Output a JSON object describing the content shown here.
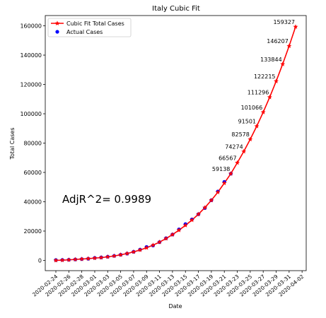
{
  "chart_data": {
    "type": "line",
    "title": "Italy Cubic Fit",
    "xlabel": "Date",
    "ylabel": "Total Cases",
    "ylim": [
      -7000,
      167000
    ],
    "yticks": [
      0,
      20000,
      40000,
      60000,
      80000,
      100000,
      120000,
      140000,
      160000
    ],
    "xtick_labels": [
      "2020-02-24",
      "2020-02-26",
      "2020-02-28",
      "2020-03-01",
      "2020-03-03",
      "2020-03-05",
      "2020-03-07",
      "2020-03-09",
      "2020-03-11",
      "2020-03-13",
      "2020-03-15",
      "2020-03-17",
      "2020-03-19",
      "2020-03-21",
      "2020-03-23",
      "2020-03-25",
      "2020-03-27",
      "2020-03-29",
      "2020-03-31",
      "2020-04-02"
    ],
    "x_start": "2020-02-24",
    "x_end": "2020-04-01",
    "legend_position": "top-left",
    "annotation": "AdjR^2= 0.9989",
    "series": [
      {
        "name": "Cubic Fit Total Cases",
        "color": "#ff0000",
        "marker": "star",
        "x": [
          "2020-02-24",
          "2020-02-25",
          "2020-02-26",
          "2020-02-27",
          "2020-02-28",
          "2020-02-29",
          "2020-03-01",
          "2020-03-02",
          "2020-03-03",
          "2020-03-04",
          "2020-03-05",
          "2020-03-06",
          "2020-03-07",
          "2020-03-08",
          "2020-03-09",
          "2020-03-10",
          "2020-03-11",
          "2020-03-12",
          "2020-03-13",
          "2020-03-14",
          "2020-03-15",
          "2020-03-16",
          "2020-03-17",
          "2020-03-18",
          "2020-03-19",
          "2020-03-20",
          "2020-03-21",
          "2020-03-22",
          "2020-03-23",
          "2020-03-24",
          "2020-03-25",
          "2020-03-26",
          "2020-03-27",
          "2020-03-28",
          "2020-03-29",
          "2020-03-30",
          "2020-03-31",
          "2020-04-01"
        ],
        "values": [
          0,
          150,
          350,
          650,
          900,
          1200,
          1550,
          1900,
          2400,
          3000,
          3800,
          4700,
          5800,
          7100,
          8600,
          10400,
          12500,
          14900,
          17600,
          20600,
          23900,
          27500,
          31500,
          36000,
          41000,
          46500,
          52700,
          59138,
          66567,
          74274,
          82578,
          91501,
          101066,
          111296,
          122215,
          133844,
          146207,
          159327
        ]
      },
      {
        "name": "Actual Cases",
        "color": "#0000ff",
        "marker": "circle",
        "x": [
          "2020-02-24",
          "2020-02-25",
          "2020-02-26",
          "2020-02-27",
          "2020-02-28",
          "2020-02-29",
          "2020-03-01",
          "2020-03-02",
          "2020-03-03",
          "2020-03-04",
          "2020-03-05",
          "2020-03-06",
          "2020-03-07",
          "2020-03-08",
          "2020-03-09",
          "2020-03-10",
          "2020-03-11",
          "2020-03-12",
          "2020-03-13",
          "2020-03-14",
          "2020-03-15",
          "2020-03-16",
          "2020-03-17",
          "2020-03-18",
          "2020-03-19",
          "2020-03-20",
          "2020-03-21",
          "2020-03-22"
        ],
        "values": [
          229,
          322,
          400,
          650,
          888,
          1128,
          1694,
          2036,
          2502,
          3089,
          3858,
          4636,
          5883,
          7375,
          9172,
          10149,
          12462,
          15113,
          17660,
          21157,
          24747,
          27980,
          31506,
          35713,
          41035,
          47021,
          53578,
          59138
        ]
      }
    ],
    "data_labels": {
      "x": [
        "2020-03-22",
        "2020-03-23",
        "2020-03-24",
        "2020-03-25",
        "2020-03-26",
        "2020-03-27",
        "2020-03-28",
        "2020-03-29",
        "2020-03-30",
        "2020-03-31",
        "2020-04-01"
      ],
      "values": [
        59138,
        66567,
        74274,
        82578,
        91501,
        101066,
        111296,
        122215,
        133844,
        146207,
        159327
      ],
      "labels": [
        "59138",
        "66567",
        "74274",
        "82578",
        "91501",
        "101066",
        "111296",
        "122215",
        "133844",
        "146207",
        "159327"
      ]
    }
  }
}
